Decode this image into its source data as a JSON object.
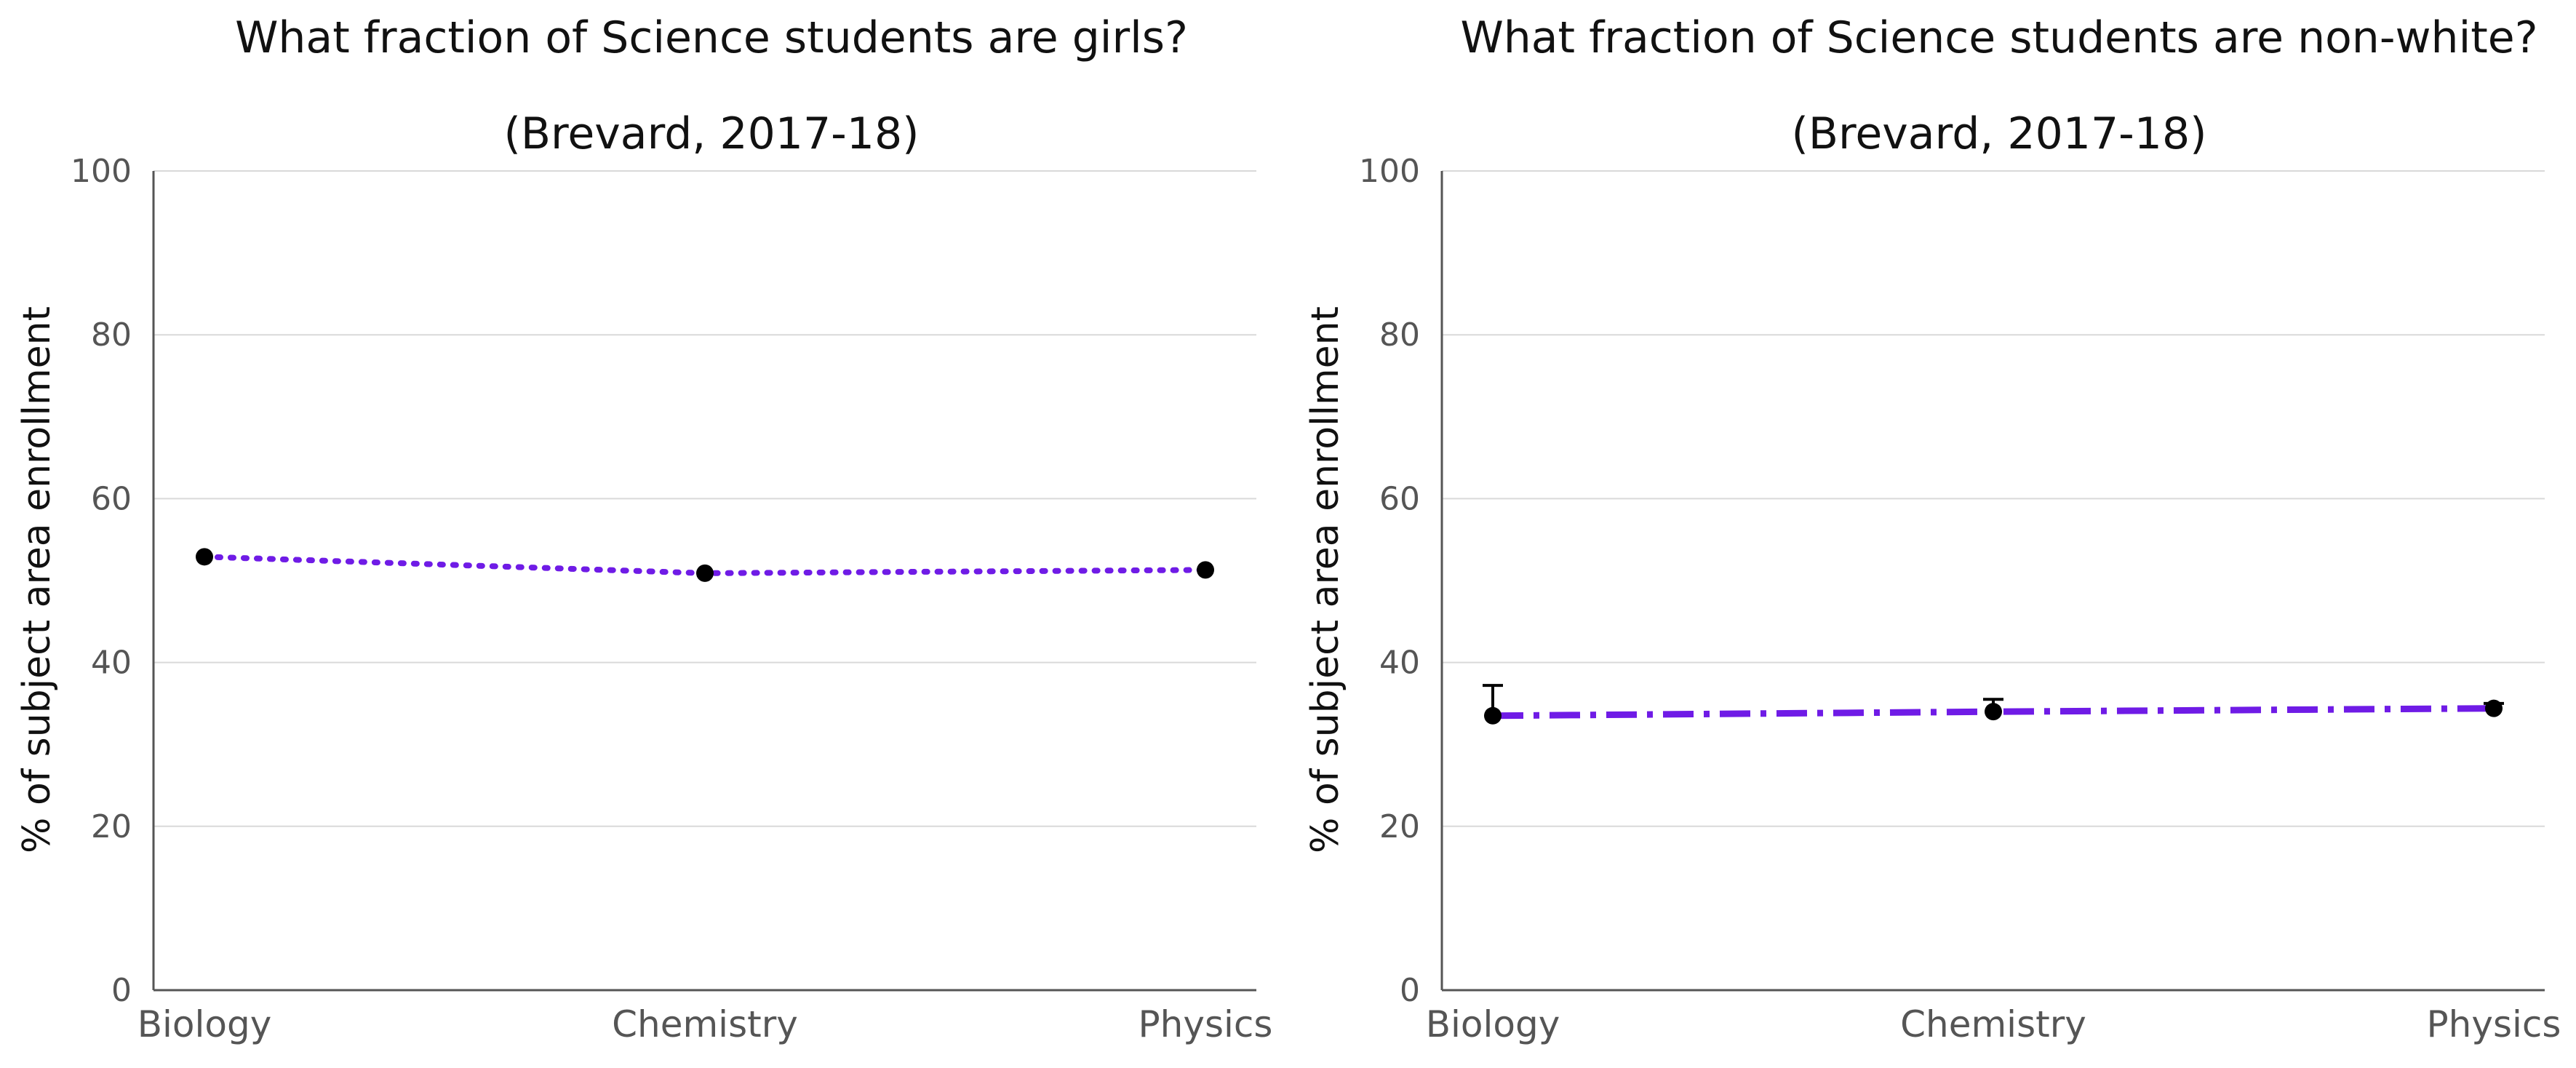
{
  "chart_data": [
    {
      "type": "line",
      "title": "What fraction of Science students are girls?",
      "subtitle": "(Brevard, 2017-18)",
      "ylabel": "% of subject area enrollment",
      "xlabel": "",
      "categories": [
        "Biology",
        "Chemistry",
        "Physics"
      ],
      "yticks": [
        "0",
        "20",
        "40",
        "60",
        "80",
        "100"
      ],
      "ylim": [
        0,
        100
      ],
      "grid": "horizontal",
      "line_style": "dotted",
      "line_color": "#6f1be6",
      "marker_color": "#000000",
      "series": [
        {
          "values": [
            52.9,
            50.9,
            51.3
          ],
          "error_upper": [
            null,
            null,
            null
          ]
        }
      ]
    },
    {
      "type": "line",
      "title": "What fraction of Science students are non-white?",
      "subtitle": "(Brevard, 2017-18)",
      "ylabel": "% of subject area enrollment",
      "xlabel": "",
      "categories": [
        "Biology",
        "Chemistry",
        "Physics"
      ],
      "yticks": [
        "0",
        "20",
        "40",
        "60",
        "80",
        "100"
      ],
      "ylim": [
        0,
        100
      ],
      "grid": "horizontal",
      "line_style": "dash-dot",
      "line_color": "#6f1be6",
      "marker_color": "#000000",
      "series": [
        {
          "values": [
            33.5,
            34.0,
            34.4
          ],
          "error_upper": [
            37.2,
            35.5,
            35.0
          ]
        }
      ]
    }
  ]
}
